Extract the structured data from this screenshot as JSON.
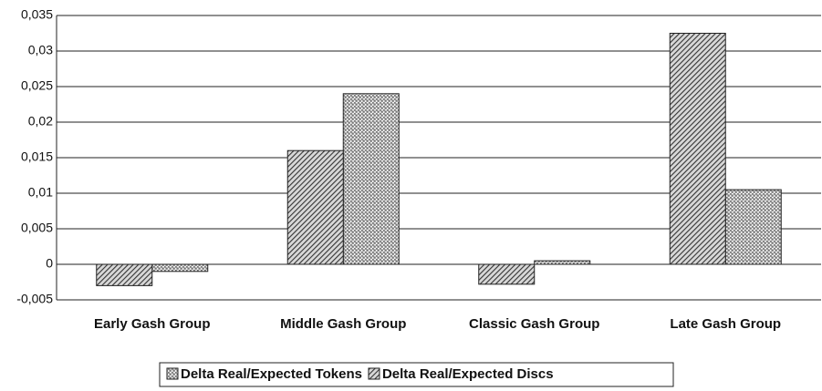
{
  "chart_data": {
    "type": "bar",
    "categories": [
      "Early Gash Group",
      "Middle Gash Group",
      "Classic Gash Group",
      "Late Gash Group"
    ],
    "series": [
      {
        "name": "Delta Real/Expected Tokens",
        "color": "#777777",
        "values": [
          -0.001,
          0.024,
          0.0005,
          0.0105
        ]
      },
      {
        "name": "Delta Real/Expected Discs",
        "color": "#333333",
        "values": [
          -0.003,
          0.016,
          -0.0028,
          0.0325
        ]
      }
    ],
    "ylim": [
      -0.005,
      0.035
    ],
    "yticks": [
      {
        "value": -0.005,
        "label": "-0,005"
      },
      0,
      {
        "value": 0.005,
        "label": "0,005"
      },
      {
        "value": 0.01,
        "label": "0,01"
      },
      {
        "value": 0.015,
        "label": "0,015"
      },
      {
        "value": 0.02,
        "label": "0,02"
      },
      {
        "value": 0.025,
        "label": "0,025"
      },
      {
        "value": 0.03,
        "label": "0,03"
      },
      {
        "value": 0.035,
        "label": "0,035"
      }
    ],
    "grid": true
  }
}
